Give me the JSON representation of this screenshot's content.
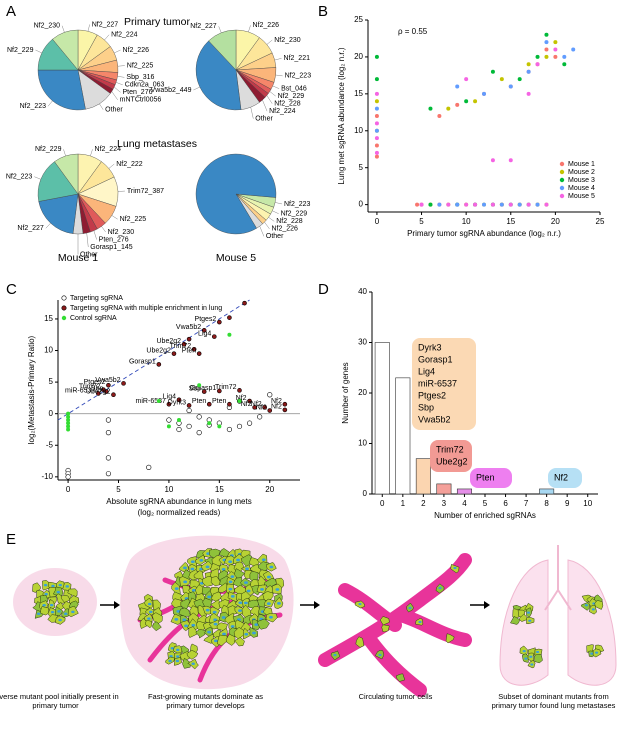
{
  "panel_labels": [
    "A",
    "B",
    "C",
    "D",
    "E"
  ],
  "chart_data": [
    {
      "type": "pie",
      "columns": [
        "Mouse 1",
        "Mouse 5"
      ],
      "rows": [
        {
          "title": "Primary tumor",
          "pies": [
            {
              "categories": [
                "Nf2_227",
                "Nf2_224",
                "Nf2_226",
                "Nf2_225",
                "Sbp_316",
                "Cdkn2a_063",
                "Pten_276",
                "mNTCtrl0056",
                "Other",
                "Nf2_223",
                "Nf2_229",
                "Nf2_230"
              ],
              "values": [
                8,
                7,
                6,
                5,
                3,
                2,
                2,
                2,
                12,
                28,
                14,
                11
              ],
              "colors": [
                "#fbf5a8",
                "#fde69a",
                "#fdd08a",
                "#fbb57a",
                "#f5866a",
                "#e05a5a",
                "#c23a4a",
                "#8e1c32",
                "#dcdcdc",
                "#3a88c4",
                "#5cbfa8",
                "#c6e8a8"
              ]
            },
            {
              "categories": [
                "Nf2_226",
                "Nf2_230",
                "Nf2_221",
                "Nf2_223",
                "Bst_046",
                "Nf2_229",
                "Nf2_228",
                "Nf2_224",
                "Other",
                "Vwa5b2_449",
                "Nf2_227"
              ],
              "values": [
                10,
                8,
                6,
                6,
                3,
                2,
                2,
                3,
                8,
                40,
                12
              ],
              "colors": [
                "#fbf5a8",
                "#fde69a",
                "#fdd08a",
                "#fbb57a",
                "#f5866a",
                "#e05a5a",
                "#c23a4a",
                "#8e1c32",
                "#dcdcdc",
                "#3a88c4",
                "#b4e0a0"
              ]
            }
          ]
        },
        {
          "title": "Lung metastases",
          "pies": [
            {
              "categories": [
                "Nf2_224",
                "Nf2_222",
                "Trim72_387",
                "Nf2_225",
                "Nf2_230",
                "Pten_276",
                "Gorasp1_145",
                "Other",
                "Nf2_227",
                "Nf2_223",
                "Nf2_229"
              ],
              "values": [
                10,
                8,
                12,
                8,
                4,
                3,
                3,
                4,
                20,
                18,
                10
              ],
              "colors": [
                "#fdf3b0",
                "#fde69a",
                "#fff6c8",
                "#fbb57a",
                "#e05a5a",
                "#c23a4a",
                "#8e1c32",
                "#dcdcdc",
                "#3a88c4",
                "#5cbfa8",
                "#c6e8a8"
              ]
            },
            {
              "categories": [
                "Nf2_223",
                "Nf2_229",
                "Nf2_228",
                "Nf2_226",
                "Other",
                null
              ],
              "values": [
                4,
                3,
                3,
                2,
                3,
                85
              ],
              "colors": [
                "#c6e8a8",
                "#e8f4b0",
                "#fdf3b0",
                "#fdd08a",
                "#dcdcdc",
                "#3a88c4"
              ],
              "start_angle": 95
            }
          ]
        }
      ]
    },
    {
      "type": "scatter",
      "xlabel": "Primary tumor sgRNA abundance (log₂ n.r.)",
      "ylabel": "Lung met sgRNA abundance (log₂ n.r.)",
      "annotation": "ρ = 0.55",
      "xlim": [
        -1,
        25
      ],
      "ylim": [
        -1,
        25
      ],
      "xticks": [
        0,
        5,
        10,
        15,
        20,
        25
      ],
      "yticks": [
        0,
        5,
        10,
        15,
        20,
        25
      ],
      "legend": "lower right",
      "series": [
        {
          "name": "Mouse 1",
          "color": "#f8766d",
          "marker": "filled",
          "x": [
            0,
            0,
            0,
            4.5,
            5,
            7,
            9,
            11,
            13,
            14,
            16,
            18,
            7,
            9,
            12,
            15,
            17,
            18,
            19,
            20
          ],
          "y": [
            12,
            8,
            6.5,
            0,
            0,
            0,
            0,
            0,
            0,
            0,
            0,
            0,
            12,
            13.5,
            15,
            16,
            18,
            19,
            21,
            20
          ]
        },
        {
          "name": "Mouse 2",
          "color": "#c4c400",
          "marker": "filled",
          "x": [
            0,
            0,
            6,
            8,
            10,
            12,
            14,
            16,
            18,
            19,
            8,
            11,
            14,
            17,
            19,
            20
          ],
          "y": [
            14,
            10,
            0,
            0,
            0,
            0,
            0,
            0,
            0,
            0,
            13,
            14,
            17,
            19,
            20,
            22
          ]
        },
        {
          "name": "Mouse 3",
          "color": "#00ba38",
          "marker": "filled",
          "x": [
            0,
            0,
            6,
            9,
            11,
            13,
            15,
            17,
            6,
            10,
            13,
            16,
            18,
            19,
            21
          ],
          "y": [
            20,
            17,
            0,
            0,
            0,
            0,
            0,
            0,
            13,
            14,
            18,
            17,
            20,
            23,
            19
          ]
        },
        {
          "name": "Mouse 4",
          "color": "#619cff",
          "marker": "filled",
          "x": [
            0,
            0,
            7,
            9,
            12,
            14,
            16,
            18,
            9,
            12,
            15,
            17,
            19,
            21,
            22
          ],
          "y": [
            13,
            10,
            0,
            0,
            0,
            0,
            0,
            0,
            16,
            15,
            16,
            18,
            22,
            20,
            21
          ]
        },
        {
          "name": "Mouse 5",
          "color": "#f564e3",
          "marker": "filled",
          "x": [
            0,
            0,
            0,
            0,
            5,
            8,
            10,
            11,
            13,
            15,
            17,
            19,
            10,
            13,
            15,
            17,
            18,
            20
          ],
          "y": [
            15,
            11,
            9,
            7,
            0,
            0,
            0,
            0,
            0,
            0,
            0,
            0,
            17,
            6,
            6,
            15,
            19,
            21
          ]
        }
      ]
    },
    {
      "type": "scatter",
      "xlabel": [
        "Absolute sgRNA abundance in lung mets",
        "(log₂ normalized reads)"
      ],
      "ylabel": "log₂(Metastasis-Primary Ratio)",
      "xlim": [
        -1,
        23
      ],
      "ylim": [
        -10.5,
        18
      ],
      "xticks": [
        0,
        5,
        10,
        15,
        20
      ],
      "yticks": [
        -10,
        -5,
        0,
        5,
        10,
        15
      ],
      "legend": "upper left",
      "zero_line": true,
      "identity_line": true,
      "series": [
        {
          "name": "Targeting sgRNA",
          "color": "#000000",
          "marker": "open",
          "x": [
            0,
            0,
            0,
            4,
            4,
            4,
            4,
            8,
            10,
            11,
            12,
            13,
            14,
            15,
            16,
            17,
            18,
            19,
            17,
            20,
            12,
            13,
            16,
            11,
            14
          ],
          "y": [
            -9,
            -9.5,
            -10,
            -9.5,
            -7,
            -3,
            -1,
            -8.5,
            -1,
            -1.5,
            -2,
            -3,
            -1,
            -1.5,
            -2.5,
            -2,
            -1.5,
            -0.5,
            2,
            3,
            0.5,
            -0.5,
            1,
            -2.5,
            -1.8
          ]
        },
        {
          "name": "Targeting sgRNA with multiple enrichment in lung",
          "color": "#8b1a1a",
          "marker": "filled",
          "x": [
            15,
            13.5,
            14.5,
            11.5,
            12.5,
            10.5,
            13,
            9,
            16,
            17.5,
            12,
            4,
            5.5,
            3.5,
            3,
            3.8,
            4.5,
            10,
            11,
            12,
            14,
            13.5,
            15,
            17,
            16,
            18,
            18.5,
            19.5,
            20,
            21.5,
            21.5
          ],
          "y": [
            14.5,
            13.2,
            12.2,
            11,
            10.2,
            9.5,
            9.5,
            7.8,
            15.2,
            17.5,
            11.8,
            4.5,
            4.8,
            3.8,
            3.2,
            3.5,
            3,
            1.5,
            2.2,
            1.3,
            1.5,
            3.5,
            3.6,
            3.7,
            1.5,
            2,
            1,
            1,
            0.5,
            1.5,
            0.6
          ],
          "labels": [
            "Ptges2",
            "Vwa5b2",
            "Lig4",
            "Ube2g2",
            "Trim72",
            "Ube2g2",
            "Pten",
            "Gorasp1",
            null,
            null,
            null,
            "Ptges2",
            "Vwa5b2",
            "Trim72",
            "miR-6537",
            "Sbp",
            "Ube2g2",
            "miR-6537",
            "Lig4",
            "Dyrk3",
            "Pten",
            "Sbp",
            "Gorasp1",
            "Trim72",
            "Pten",
            "Nf2",
            "Nf2",
            "Nf2",
            "Nf2",
            "Nf2",
            "Nf2"
          ]
        },
        {
          "name": "Control sgRNA",
          "color": "#33dd33",
          "marker": "filled",
          "x": [
            0,
            0,
            0,
            0,
            0,
            0,
            10,
            13,
            15,
            14,
            16,
            11,
            9,
            17
          ],
          "y": [
            -1,
            -1.5,
            -0.5,
            0,
            -2,
            -2.5,
            -2,
            4.5,
            -2,
            -1.5,
            12.5,
            -1,
            2,
            2
          ]
        }
      ]
    },
    {
      "type": "bar",
      "xlabel": "Number of enriched sgRNAs",
      "ylabel": "Number of genes",
      "x": [
        0,
        1,
        2,
        3,
        4,
        5,
        6,
        7,
        8,
        9,
        10
      ],
      "values": [
        30,
        23,
        7,
        2,
        1,
        0,
        0,
        0,
        1,
        0,
        0
      ],
      "colors": [
        "#ffffff",
        "#ffffff",
        "#fbd5b0",
        "#f4a09a",
        "#e58fe8",
        "#ffffff",
        "#ffffff",
        "#ffffff",
        "#a8d8f2",
        "#ffffff",
        "#ffffff"
      ],
      "xlim": [
        -0.5,
        10.5
      ],
      "ylim": [
        0,
        40
      ],
      "xticks": [
        0,
        1,
        2,
        3,
        4,
        5,
        6,
        7,
        8,
        9,
        10
      ],
      "yticks": [
        0,
        10,
        20,
        30,
        40
      ],
      "annotations": [
        {
          "lines": [
            "Dyrk3",
            "Gorasp1",
            "Lig4",
            "miR-6537",
            "Ptges2",
            "Sbp",
            "Vwa5b2"
          ],
          "color": "#fbd9b4"
        },
        {
          "lines": [
            "Trim72",
            "Ube2g2"
          ],
          "color": "#f29a94"
        },
        {
          "lines": [
            "Pten"
          ],
          "color": "#ee7ff0"
        },
        {
          "lines": [
            "Nf2"
          ],
          "color": "#b6e0f5"
        }
      ]
    }
  ],
  "diagram": {
    "captions": [
      "Diverse mutant pool initially present in primary tumor",
      "Fast-growing mutants dominate as primary tumor develops",
      "Circulating tumor cells",
      "Subset of dominant mutants from primary tumor found lung metastases"
    ]
  }
}
